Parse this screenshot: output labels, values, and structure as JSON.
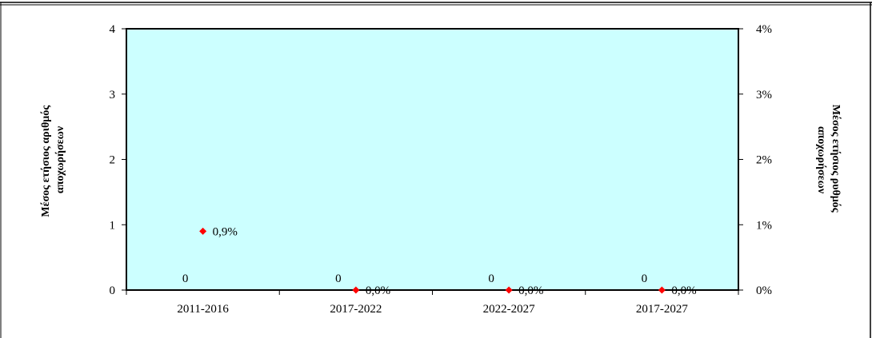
{
  "chart_data": {
    "type": "bar+scatter",
    "categories": [
      "2011-2016",
      "2017-2022",
      "2022-2027",
      "2017-2027"
    ],
    "series": [
      {
        "axis": "left",
        "type": "bar",
        "values": [
          0,
          0,
          0,
          0
        ],
        "labels": [
          "0",
          "0",
          "0",
          "0"
        ]
      },
      {
        "axis": "right",
        "type": "scatter",
        "values": [
          0.9,
          0.0,
          0.0,
          0.0
        ],
        "labels": [
          "0,9%",
          "0,0%",
          "0,0%",
          "0,0%"
        ],
        "color": "#ff0000"
      }
    ],
    "y_left": {
      "title_line1": "Μέσος ετήσιος αριθμός",
      "title_line2": "αποχωρήσεων",
      "ylim": [
        0,
        4
      ],
      "ticks": [
        "0",
        "1",
        "2",
        "3",
        "4"
      ]
    },
    "y_right": {
      "title_line1": "Μέσος ετήσιος ρυθμός",
      "title_line2": "αποχωρήσεων",
      "ylim": [
        0,
        4
      ],
      "ticks": [
        "0%",
        "1%",
        "2%",
        "3%",
        "4%"
      ]
    },
    "plot_background": "#ccffff",
    "grid": false
  }
}
